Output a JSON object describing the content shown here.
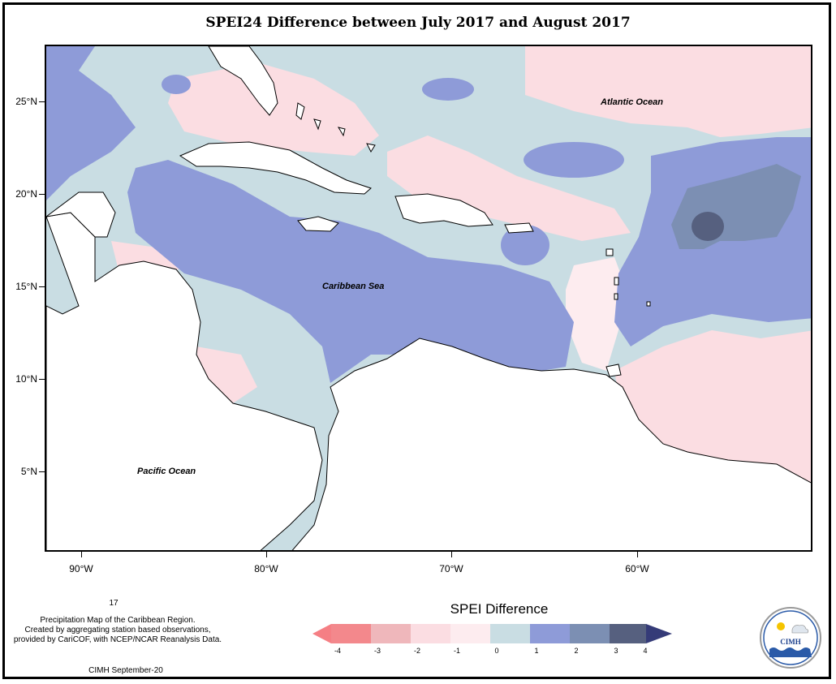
{
  "title": "SPEI24 Difference between July 2017 and August 2017",
  "map": {
    "lat_ticks": [
      "25°N",
      "20°N",
      "15°N",
      "10°N",
      "5°N"
    ],
    "lon_ticks": [
      "90°W",
      "80°W",
      "70°W",
      "60°W"
    ],
    "labels": {
      "atlantic": "Atlantic Ocean",
      "caribbean": "Caribbean Sea",
      "pacific": "Pacific Ocean"
    }
  },
  "legend": {
    "title": "SPEI Difference",
    "ticks": [
      "-4",
      "-3",
      "-2",
      "-1",
      "0",
      "1",
      "2",
      "3",
      "4"
    ],
    "colors": [
      "#f3888c",
      "#efb7bb",
      "#fbdde2",
      "#fdecef",
      "#c9dde3",
      "#8e9bd8",
      "#7c8fb3",
      "#56607f"
    ],
    "arrow_low": "#f57f84",
    "arrow_high": "#353b78"
  },
  "footnote": {
    "number": "17",
    "line1": "Precipitation Map of the Caribbean Region.",
    "line2": "Created by aggregating station based observations,",
    "line3": "provided by CariCOF, with NCEP/NCAR Reanalysis Data.",
    "credit": "CIMH September-20"
  },
  "logo": {
    "text": "CIMH"
  }
}
